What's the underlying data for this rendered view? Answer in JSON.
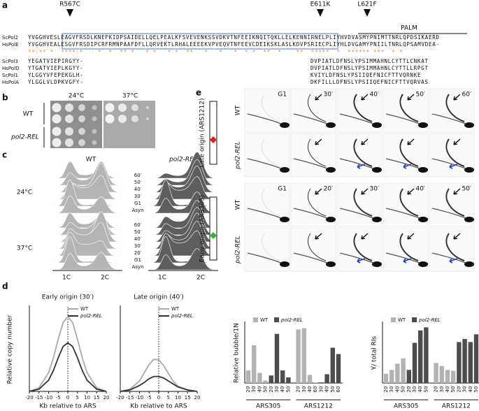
{
  "panel_labels": [
    "a",
    "b",
    "c",
    "d",
    "e"
  ],
  "alignment": {
    "mutations": [
      "R567C",
      "E611K",
      "L621F"
    ],
    "domain": "PALM",
    "rows": [
      {
        "name": "ScPol2",
        "seq": [
          "YVGGHVESLEAGVFRSDLKNEFKIDPSAIDELLQELPEALKFSVEVENKSSVDKVTNFEEIKNQITQKLLELKENNIRNELPLIYHVDVASMYPNIMTTNRLQPDSIKAERD"
        ]
      },
      {
        "name": "HsPolE",
        "seq": [
          "YVGGHVEALESGVFRSDIPCRFRMNPAAFDFLLQRVEKTLRHALEEEEKVPVEQVTNFEEVCDEIKSKLASLKDVPSRIECPLIYHLDVGAMYPNIILTNRLQPSAMVDEA-"
        ]
      },
      {
        "name": "ScPol3",
        "seq": [
          "YEGATVIEPIRGYY-",
          "DVPIATLDFNSLYPSIMMAHNLCYTTLCNKAT"
        ]
      },
      {
        "name": "HsPolD",
        "seq": [
          "YTGATVIEPLKGYY-",
          "DVPIATLDFNSLYPSIMMAHNLCYTTLLRPGT"
        ]
      },
      {
        "name": "ScPol1",
        "seq": [
          "YLGGYVFEPEKGLH-",
          "KVIYLDFNSLYPSIIQEFNICFTTVQRNKE"
        ]
      },
      {
        "name": "HsPolA",
        "seq": [
          "YLGGLVLDPKVGFY-",
          "DKFILLLDFNSLYPSIIQEFNICFTTVQRVAS"
        ]
      }
    ],
    "conservation": "**:** *  ****:*    *  *  ** *   * *   * *  **   *   *   *  * *  **  *    **  *****  *  ****** ***  * *"
  },
  "spot_assay": {
    "temperatures": [
      "24°C",
      "37°C"
    ],
    "strains": [
      "WT",
      "pol2-REL"
    ]
  },
  "flow": {
    "strains": [
      "WT",
      "pol2-REL"
    ],
    "temperatures": [
      "24°C",
      "37°C"
    ],
    "timepoints_24": [
      "60′",
      "50′",
      "40′",
      "30′",
      "G1",
      "Asyn"
    ],
    "timepoints_37": [
      "60′",
      "50′",
      "40′",
      "30′",
      "20′",
      "G1",
      "Asyn"
    ],
    "x_labels": [
      "1C",
      "2C"
    ]
  },
  "gels": {
    "origins": [
      "Late origin (ARS1212)",
      "Early origin (ARS305)"
    ],
    "strains": [
      "WT",
      "pol2-REL"
    ],
    "timepoints_late": [
      "G1",
      "30′",
      "40′",
      "50′",
      "60′"
    ],
    "timepoints_early": [
      "G1",
      "20′",
      "30′",
      "40′",
      "50′"
    ]
  },
  "chart_data": [
    {
      "type": "line",
      "title": "Early origin (30′)",
      "y_label": "Relative copy number",
      "x_label": "Kb relative to ARS",
      "x": [
        -20,
        -15,
        -10,
        -7.5,
        -5,
        -2.5,
        0,
        2.5,
        5,
        7.5,
        10,
        15,
        20
      ],
      "xlim": [
        -20,
        20
      ],
      "xticks": [
        -20,
        -15,
        -10,
        -5,
        0,
        5,
        10,
        15,
        20
      ],
      "ylim": [
        0,
        1.15
      ],
      "series": [
        {
          "name": "WT",
          "color": "#aaaaaa",
          "values": [
            0,
            0.05,
            0.25,
            0.45,
            0.7,
            0.92,
            1.0,
            0.92,
            0.7,
            0.45,
            0.25,
            0.05,
            0
          ]
        },
        {
          "name": "pol2-REL",
          "color": "#333333",
          "values": [
            0,
            0.03,
            0.15,
            0.28,
            0.45,
            0.6,
            0.65,
            0.6,
            0.45,
            0.28,
            0.15,
            0.03,
            0
          ]
        }
      ]
    },
    {
      "type": "line",
      "title": "Late origin (40′)",
      "x_label": "Kb relative to ARS",
      "x": [
        -20,
        -15,
        -10,
        -7.5,
        -5,
        -2.5,
        0,
        2.5,
        5,
        7.5,
        10,
        15,
        20
      ],
      "xlim": [
        -20,
        20
      ],
      "xticks": [
        -20,
        -15,
        -10,
        -5,
        0,
        5,
        10,
        15,
        20
      ],
      "ylim": [
        0,
        1.15
      ],
      "series": [
        {
          "name": "WT",
          "color": "#aaaaaa",
          "values": [
            0,
            0.03,
            0.14,
            0.25,
            0.36,
            0.43,
            0.42,
            0.35,
            0.24,
            0.14,
            0.07,
            0.02,
            0
          ]
        },
        {
          "name": "pol2-REL",
          "color": "#333333",
          "values": [
            0,
            0.02,
            0.08,
            0.12,
            0.17,
            0.2,
            0.2,
            0.18,
            0.14,
            0.1,
            0.06,
            0.02,
            0
          ]
        }
      ]
    },
    {
      "type": "bar",
      "y_label": "Relative bubble/1N",
      "group_labels": [
        "ARS305",
        "ARS1212"
      ],
      "categories": [
        "20′",
        "30′",
        "40′",
        "50′",
        "20′",
        "30′",
        "40′",
        "50′",
        "20′",
        "30′",
        "40′",
        "60′",
        "30′",
        "40′",
        "50′",
        "60′"
      ],
      "ylim": [
        0,
        4.6
      ],
      "series": [
        {
          "name": "WT",
          "color": "#b3b3b3",
          "values": [
            1.0,
            3.0,
            0.8,
            0.2,
            null,
            null,
            null,
            null,
            4.25,
            4.35,
            0.65,
            0.05,
            null,
            null,
            null,
            null
          ]
        },
        {
          "name": "pol2-REL",
          "color": "#4d4d4d",
          "values": [
            null,
            null,
            null,
            null,
            0.6,
            3.9,
            1.0,
            0.45,
            null,
            null,
            null,
            null,
            0.05,
            0.7,
            2.8,
            2.3
          ]
        }
      ]
    },
    {
      "type": "bar",
      "y_label": "Y/ total RIs",
      "group_labels": [
        "ARS305",
        "ARS1212"
      ],
      "categories": [
        "20′",
        "30′",
        "40′",
        "50′",
        "20′",
        "30′",
        "40′",
        "50′",
        "20′",
        "30′",
        "40′",
        "50′",
        "20′",
        "30′",
        "40′",
        "50′"
      ],
      "ylim": [
        0,
        0.75
      ],
      "series": [
        {
          "name": "WT",
          "color": "#b3b3b3",
          "values": [
            0.12,
            0.17,
            0.25,
            0.32,
            null,
            null,
            null,
            null,
            0.26,
            0.22,
            0.17,
            0.16,
            null,
            null,
            null,
            null
          ]
        },
        {
          "name": "pol2-REL",
          "color": "#4d4d4d",
          "values": [
            null,
            null,
            null,
            null,
            0.17,
            0.52,
            0.68,
            0.72,
            null,
            null,
            null,
            null,
            0.53,
            0.57,
            0.53,
            0.63
          ]
        }
      ]
    }
  ]
}
